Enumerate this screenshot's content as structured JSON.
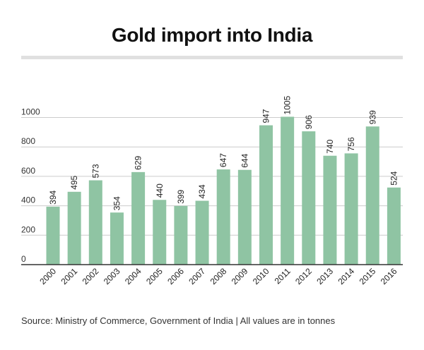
{
  "title": "Gold import into India",
  "source": "Source: Ministry of Commerce, Government of India | All values are in tonnes",
  "colors": {
    "bar": "#8fc4a3",
    "grid": "#cccccc",
    "axis": "#333333",
    "rule": "#e0e0e0"
  },
  "chart_data": {
    "type": "bar",
    "title": "Gold import into India",
    "xlabel": "",
    "ylabel": "",
    "categories": [
      "2000",
      "2001",
      "2002",
      "2003",
      "2004",
      "2005",
      "2006",
      "2007",
      "2008",
      "2009",
      "2010",
      "2011",
      "2012",
      "2013",
      "2014",
      "2015",
      "2016"
    ],
    "values": [
      394,
      495,
      573,
      354,
      629,
      440,
      399,
      434,
      647,
      644,
      947,
      1005,
      906,
      740,
      756,
      939,
      524
    ],
    "ylim": [
      0,
      1000
    ],
    "yticks": [
      0,
      200,
      400,
      600,
      800,
      1000
    ],
    "grid": true,
    "data_labels": true,
    "legend": "none"
  }
}
